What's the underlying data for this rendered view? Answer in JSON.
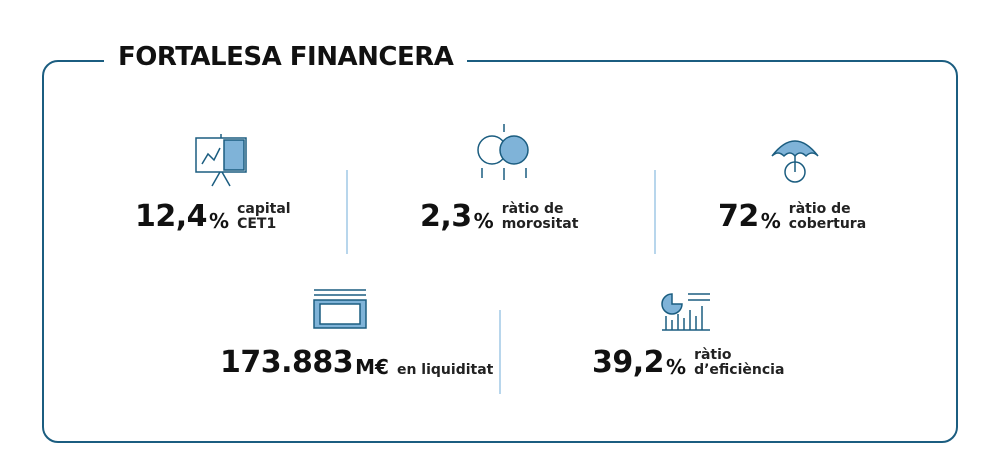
{
  "title": "FORTALESA FINANCERA",
  "metrics": [
    {
      "value": "12,4",
      "unit": "%",
      "label": [
        "capital",
        "CET1"
      ]
    },
    {
      "value": "2,3",
      "unit": "%",
      "label": [
        "ràtio de",
        "morositat"
      ]
    },
    {
      "value": "72",
      "unit": "%",
      "label": [
        "ràtio de",
        "cobertura"
      ]
    },
    {
      "value": "173.883",
      "unit": "M€",
      "label": [
        "en liquiditat"
      ]
    },
    {
      "value": "39,2",
      "unit": "%",
      "label": [
        "ràtio",
        "d’eficiència"
      ]
    }
  ]
}
